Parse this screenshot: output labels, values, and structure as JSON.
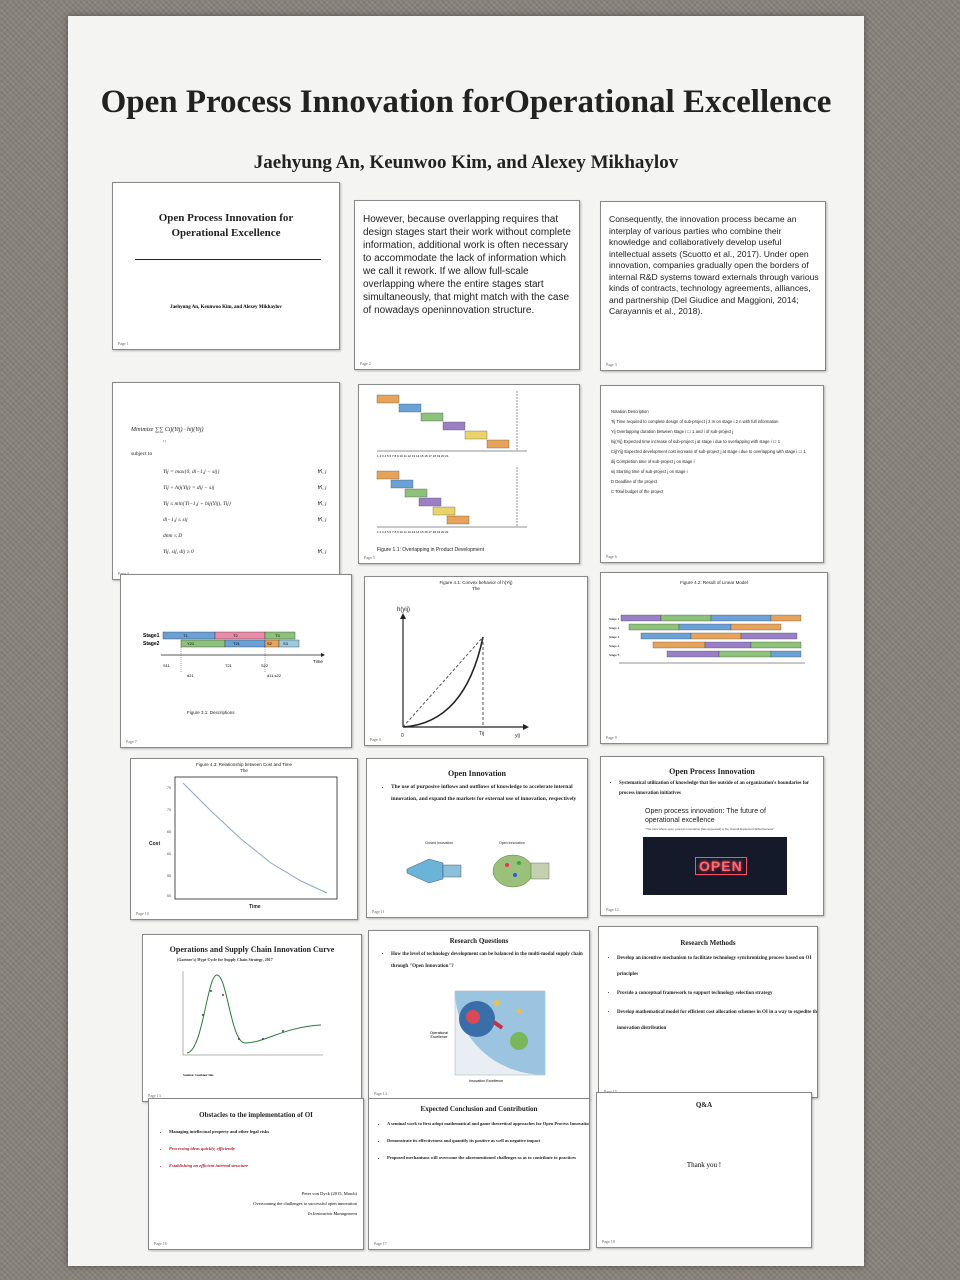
{
  "poster": {
    "title": "Open Process Innovation forOperational Excellence",
    "authors": "Jaehyung An, Keunwoo Kim, and Alexey Mikhaylov"
  },
  "slide1": {
    "title": "Open Process Innovation for Operational Excellence",
    "authors": "Jaehyung An, Keunwoo Kim, and Alexey Mikhaylov",
    "page": "Page 1"
  },
  "slide2": {
    "text": "However, because overlapping requires that design stages start their work without complete information, additional work is often necessary to accommodate the lack of information which we call it rework. If we allow full-scale overlapping where the entire stages start simultaneously, that might match with the case of nowadays openinnovation structure.",
    "page": "Page 2"
  },
  "slide3": {
    "text": "Consequently, the innovation process became an interplay of various parties who combine their knowledge and collaboratively develop useful intellectual assets (Scuotto et al., 2017). Under open innovation, companies gradually open the borders of internal R&D systems toward externals through various kinds of contracts, technology agreements, alliances, and partnership (Del Giudice and Maggioni, 2014; Carayannis et al., 2018).",
    "page": "Page 3"
  },
  "slide4": {
    "objective": "Minimize ∑∑ Cij(Yij) · hij(Yij)",
    "objective_idx": "i    j",
    "subject_to": "subject to",
    "constraints": [
      "Yij = max{0, di−1,j − sij}",
      "Tij + hij(Yij) = dij − sij",
      "Yij ≤ min{Ti−1,j + hij(Yij), Tij}",
      "di−1,j ≤ sij",
      "dnm ≤ D",
      "Yij, sij, dij ≥ 0"
    ],
    "foralls": [
      "∀i, j",
      "∀i, j",
      "∀i, j",
      "∀i, j",
      "",
      "∀i, j"
    ],
    "page": "Page 4"
  },
  "slide5": {
    "caption": "Figure 1.1: Overlapping in Product Development",
    "ticks": "1 2 3 4 5 6 7 8 9 10 11 12 13 14 15 16 17 18 19 20 21",
    "page": "Page 5"
  },
  "slide6": {
    "lines": [
      "Notation Description",
      "Tij Time required to complete design of sub-project j 2 m on stage i 2 n with full information",
      "Yij Overlapping duration between stage i ☐   1 and i of sub-project j",
      "hij(Yij) Expected time increase of sub-project j at stage i due to overlapping with stage i ☐   1",
      "Cij(Yij) Expected development cost increase of sub-project j at stage i due to overlapping with stage i ☐   1",
      "dij Completion time of sub-project j on stage i",
      "sij Starting time of sub-project j on stage i",
      "D Deadline of the project",
      "C Total budget of the project"
    ],
    "page": "Page 6"
  },
  "slide7": {
    "labels": [
      "Stage1",
      "Stage2"
    ],
    "blocks": [
      "T1",
      "T2",
      "T3",
      "Y21",
      "T21",
      "T22",
      "S2",
      "S3"
    ],
    "time_label": "Time",
    "marks": [
      "S11",
      "d21",
      "d11",
      "d21,s22"
    ],
    "caption": "Figure 3.1: Descriptions",
    "page": "Page 7"
  },
  "slide8": {
    "title": "Figure 4.1: Convex behavior of h(Yij)",
    "subtitle": "The",
    "ylabel": "h(yij)",
    "origin": "0",
    "tij": "Tij",
    "xlabel": "yij",
    "page": "Page 8"
  },
  "slide9": {
    "title": "Figure 4.2: Result of Linear Model",
    "page": "Page 9"
  },
  "slide10": {
    "title": "Figure 4.3: Relationship between Cost and Time",
    "subtitle": "The",
    "ylabel": "Cost",
    "xlabel": "Time",
    "page": "Page 10"
  },
  "slide11": {
    "title": "Open Innovation",
    "bullet": "The use of purposive inflows and outflows of knowledge to accelerate internal innovation, and expand the markets for external use of innovation, respectively",
    "left_label": "Closed Innovation",
    "right_label": "Open Innovation",
    "page": "Page 11"
  },
  "slide12": {
    "title": "Open Process Innovation",
    "bullet": "Systematical utilization of knowledge that lies outside of an organization's boundaries for process innovation initiatives",
    "sub_title": "Open process innovation: The future of operational excellence",
    "sub_small": "\"The past where open process innovation [has appeared] is the Overall Equipment Effectiveness\"",
    "sign": "OPEN",
    "page": "Page 12"
  },
  "slide13": {
    "title": "Operations and Supply Chain Innovation Curve",
    "subtitle": "(Gartner's) Hype Cycle for Supply Chain Strategy, 2017",
    "source": "Source: Gartner Inc.",
    "page": "Page 13"
  },
  "slide14": {
    "title": "Research Questions",
    "bullet": "How the level of technology development can be balanced in the multi-modal supply chain through \"Open Innovation\"?",
    "label_left": "Operational Excellence",
    "label_bottom": "Innovation Excellence",
    "page": "Page 14"
  },
  "slide15": {
    "title": "Research Methods",
    "bullets": [
      "Develop an incentive mechanism to facilitate technology synchronizing process based on OI principles",
      "Provide a conceptual framework to support technology selection strategy",
      "Develop mathematical model for efficient cost allocation schemes in OI in a way to expedite the innovation distribution"
    ],
    "page": "Page 15"
  },
  "slide16": {
    "title": "Obstacles to the implementation of OI",
    "bullets": [
      "Managing intellectual property and other legal risks",
      "Processing ideas quickly, efficiently",
      "Establishing an efficient internal structure"
    ],
    "ref1": "Peter von Dyck (2015, March)",
    "ref2": "Overcoming the challenges to successful open innovation",
    "ref3": "In Innovation Management",
    "page": "Page 16"
  },
  "slide17": {
    "title": "Expected Conclusion and Contribution",
    "bullets": [
      "A seminal work to first adopt mathematical and game theoretical approaches for Open Process Innovation",
      "Demonstrate its effectiveness and quantify its positive as well as negative impact",
      "Proposed mechanisms will overcome the aforementioned challenges so as to contribute to practices"
    ],
    "page": "Page 17"
  },
  "slide18": {
    "title": "Q&A",
    "text": "Thank you !",
    "page": "Page 18"
  },
  "colors": {
    "poster_bg": "#f4f4f2",
    "board": "#8a857c",
    "gantt_orange": "#e8a35a",
    "gantt_blue": "#6aa2d8",
    "gantt_green": "#8cc27a",
    "gantt_purple": "#9b7fc6",
    "gantt_yellow": "#e9d36a"
  }
}
